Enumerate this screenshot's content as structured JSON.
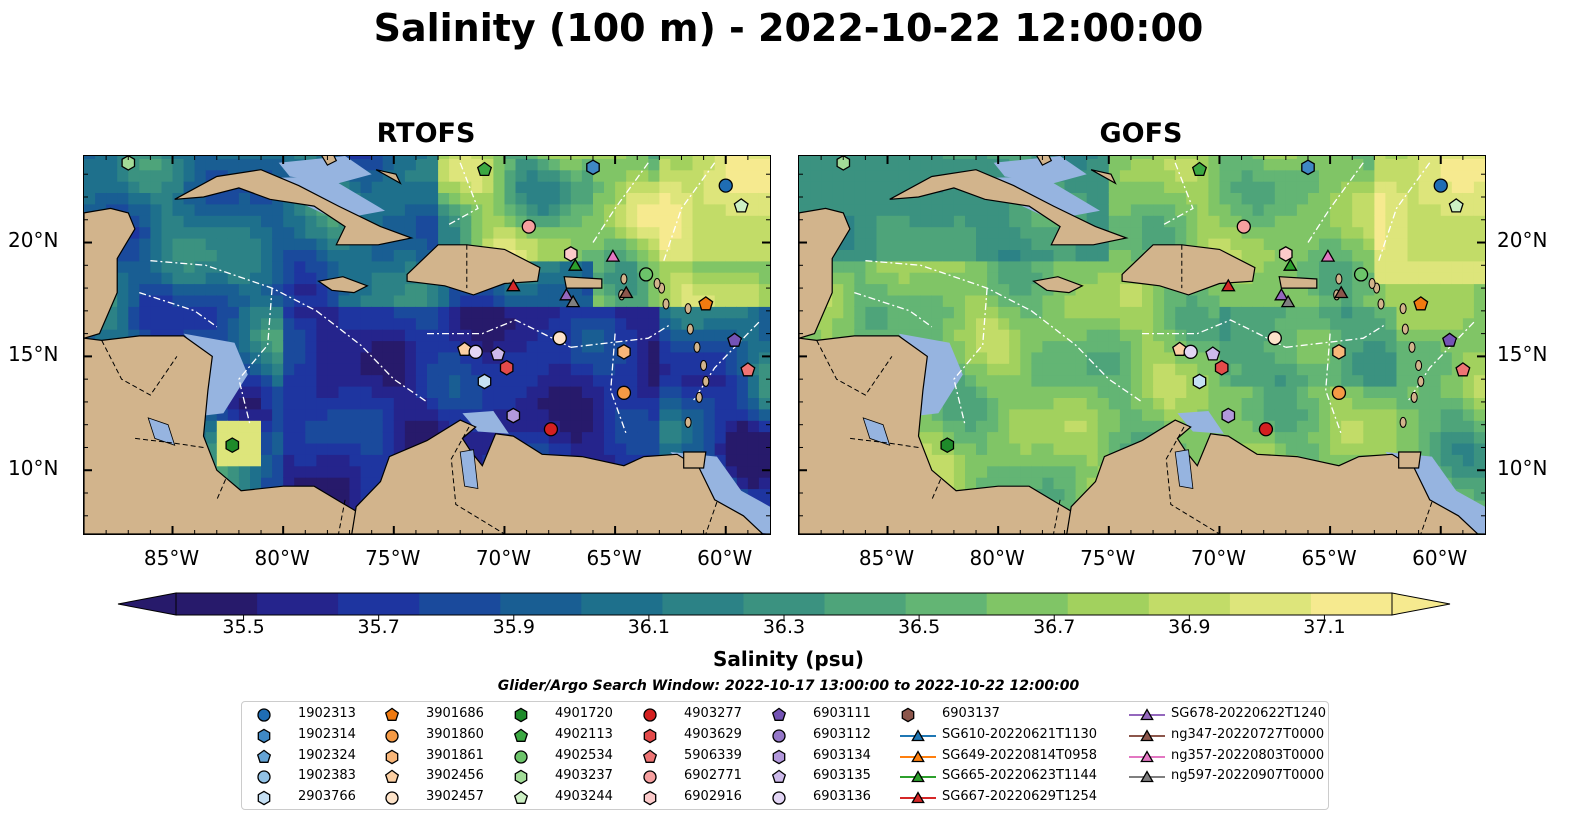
{
  "title": "Salinity (100 m) - 2022-10-22 12:00:00",
  "panels": [
    {
      "title": "RTOFS",
      "field": "rtofs"
    },
    {
      "title": "GOFS",
      "field": "gofs"
    }
  ],
  "axes": {
    "lat_labels": [
      "20°N",
      "15°N",
      "10°N"
    ],
    "lon_labels": [
      "85°W",
      "80°W",
      "75°W",
      "70°W",
      "65°W",
      "60°W"
    ],
    "lat_values": [
      20,
      15,
      10
    ],
    "lon_values": [
      -85,
      -80,
      -75,
      -70,
      -65,
      -60
    ],
    "extent": {
      "lon": [
        -89,
        -58
      ],
      "lat": [
        7.2,
        23.8
      ]
    }
  },
  "colorbar": {
    "label": "Salinity (psu)",
    "ticks": [
      "35.5",
      "35.7",
      "35.9",
      "36.1",
      "36.3",
      "36.5",
      "36.7",
      "36.9",
      "37.1"
    ],
    "range": [
      35.4,
      37.2
    ],
    "colors": [
      "#271a6b",
      "#25248c",
      "#1e35a0",
      "#1a4a9c",
      "#195e93",
      "#1e708c",
      "#2c8286",
      "#3b9280",
      "#4ea47a",
      "#63b574",
      "#80c566",
      "#a2d15e",
      "#c2dc68",
      "#dde57b",
      "#f6ea8f"
    ]
  },
  "legend": {
    "title": "Glider/Argo Search Window: 2022-10-17 13:00:00 to 2022-10-22 12:00:00",
    "columns": [
      [
        {
          "label": "1902313",
          "marker": "circle",
          "color": "#1f6db4"
        },
        {
          "label": "1902314",
          "marker": "hexagon",
          "color": "#3f88c4"
        },
        {
          "label": "1902324",
          "marker": "pentagon",
          "color": "#65a3d4"
        },
        {
          "label": "1902383",
          "marker": "circle",
          "color": "#92c2e6"
        },
        {
          "label": "2903766",
          "marker": "hexagon",
          "color": "#c6e0f4"
        }
      ],
      [
        {
          "label": "3901686",
          "marker": "pentagon",
          "color": "#f07a10"
        },
        {
          "label": "3901860",
          "marker": "circle",
          "color": "#f59a45"
        },
        {
          "label": "3901861",
          "marker": "hexagon",
          "color": "#f8b679"
        },
        {
          "label": "3902456",
          "marker": "pentagon",
          "color": "#fbcfa3"
        },
        {
          "label": "3902457",
          "marker": "circle",
          "color": "#fde3c9"
        }
      ],
      [
        {
          "label": "4901720",
          "marker": "hexagon",
          "color": "#1e8a2a"
        },
        {
          "label": "4902113",
          "marker": "pentagon",
          "color": "#3ba842"
        },
        {
          "label": "4902534",
          "marker": "circle",
          "color": "#6cc46a"
        },
        {
          "label": "4903237",
          "marker": "hexagon",
          "color": "#a2dc98"
        },
        {
          "label": "4903244",
          "marker": "pentagon",
          "color": "#cdf0c4"
        }
      ],
      [
        {
          "label": "4903277",
          "marker": "circle",
          "color": "#d42020"
        },
        {
          "label": "4903629",
          "marker": "hexagon",
          "color": "#e34a4a"
        },
        {
          "label": "5906339",
          "marker": "pentagon",
          "color": "#ee7474"
        },
        {
          "label": "6902771",
          "marker": "circle",
          "color": "#f59f9f"
        },
        {
          "label": "6902916",
          "marker": "hexagon",
          "color": "#fbcaca"
        }
      ],
      [
        {
          "label": "6903111",
          "marker": "pentagon",
          "color": "#7453b5"
        },
        {
          "label": "6903112",
          "marker": "circle",
          "color": "#9577c8"
        },
        {
          "label": "6903134",
          "marker": "hexagon",
          "color": "#b298db"
        },
        {
          "label": "6903135",
          "marker": "pentagon",
          "color": "#cdbaea"
        },
        {
          "label": "6903136",
          "marker": "circle",
          "color": "#e3d6f5"
        }
      ],
      [
        {
          "label": "6903137",
          "marker": "hexagon",
          "color": "#8c564b"
        },
        {
          "label": "SG610-20220621T1130",
          "marker": "triangle",
          "color": "#1f77b4",
          "line": true
        },
        {
          "label": "SG649-20220814T0958",
          "marker": "triangle",
          "color": "#ff7f0e",
          "line": true
        },
        {
          "label": "SG665-20220623T1144",
          "marker": "triangle",
          "color": "#2ca02c",
          "line": true
        },
        {
          "label": "SG667-20220629T1254",
          "marker": "triangle",
          "color": "#d62728",
          "line": true
        }
      ],
      [
        {
          "label": "SG678-20220622T1240",
          "marker": "triangle",
          "color": "#9467bd",
          "line": true
        },
        {
          "label": "ng347-20220727T0000",
          "marker": "triangle",
          "color": "#8c564b",
          "line": true
        },
        {
          "label": "ng357-20220803T0000",
          "marker": "triangle",
          "color": "#e377c2",
          "line": true
        },
        {
          "label": "ng597-20220907T0000",
          "marker": "triangle",
          "color": "#7f7f7f",
          "line": true
        }
      ]
    ]
  },
  "markers": [
    {
      "id": "1902313",
      "lon": -60.0,
      "lat": 22.5
    },
    {
      "id": "1902314",
      "lon": -66.0,
      "lat": 23.3
    },
    {
      "id": "4903244",
      "lon": -59.3,
      "lat": 21.6
    },
    {
      "id": "4903237",
      "lon": -87.0,
      "lat": 23.5
    },
    {
      "id": "4902113",
      "lon": -70.9,
      "lat": 23.2
    },
    {
      "id": "6902771",
      "lon": -68.9,
      "lat": 20.7
    },
    {
      "id": "6902916",
      "lon": -67.0,
      "lat": 19.5
    },
    {
      "id": "SG665-20220623T1144",
      "lon": -66.8,
      "lat": 19.0
    },
    {
      "id": "ng357-20220803T0000",
      "lon": -65.1,
      "lat": 19.4
    },
    {
      "id": "4902534",
      "lon": -63.6,
      "lat": 18.6
    },
    {
      "id": "SG667-20220629T1254",
      "lon": -69.6,
      "lat": 18.1
    },
    {
      "id": "SG678-20220622T1240",
      "lon": -67.2,
      "lat": 17.7
    },
    {
      "id": "ng597-20220907T0000",
      "lon": -66.9,
      "lat": 17.4
    },
    {
      "id": "ng347-20220727T0000",
      "lon": -64.5,
      "lat": 17.8
    },
    {
      "id": "3901686",
      "lon": -60.9,
      "lat": 17.3
    },
    {
      "id": "6903111",
      "lon": -59.6,
      "lat": 15.7
    },
    {
      "id": "5906339",
      "lon": -59.0,
      "lat": 14.4
    },
    {
      "id": "3902457",
      "lon": -67.5,
      "lat": 15.8
    },
    {
      "id": "3902456",
      "lon": -71.8,
      "lat": 15.3
    },
    {
      "id": "6903136",
      "lon": -71.3,
      "lat": 15.2
    },
    {
      "id": "6903135",
      "lon": -70.3,
      "lat": 15.1
    },
    {
      "id": "3901861",
      "lon": -64.6,
      "lat": 15.2
    },
    {
      "id": "4903629",
      "lon": -69.9,
      "lat": 14.5
    },
    {
      "id": "2903766",
      "lon": -70.9,
      "lat": 13.9
    },
    {
      "id": "3901860",
      "lon": -64.6,
      "lat": 13.4
    },
    {
      "id": "6903134",
      "lon": -69.6,
      "lat": 12.4
    },
    {
      "id": "4903277",
      "lon": -67.9,
      "lat": 11.8
    },
    {
      "id": "4901720",
      "lon": -82.3,
      "lat": 11.1
    }
  ]
}
